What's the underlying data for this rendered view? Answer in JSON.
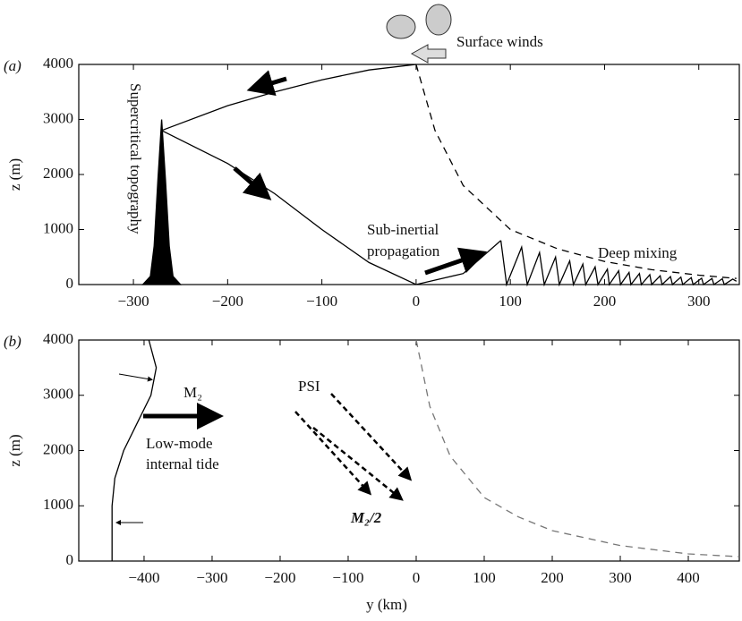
{
  "chart_data": [
    {
      "type": "line",
      "panel_label": "(a)",
      "ylabel": "z (m)",
      "xlim": [
        -358,
        343
      ],
      "ylim": [
        0,
        4000
      ],
      "xticks": [
        {
          "value": -300,
          "label": "−300"
        },
        {
          "value": -200,
          "label": "−200"
        },
        {
          "value": -100,
          "label": "−100"
        },
        0,
        100,
        200,
        300
      ],
      "yticks": [
        0,
        1000,
        2000,
        3000,
        4000
      ],
      "series": [
        {
          "color": "#000000",
          "fill": true,
          "x": [
            -290,
            -282,
            -278,
            -274,
            -270,
            -266,
            -262,
            -258,
            -250
          ],
          "y": [
            0,
            150,
            700,
            1900,
            3000,
            1900,
            700,
            150,
            0
          ]
        },
        {
          "color": "#000000",
          "x": [
            -270,
            -200,
            -150,
            -100,
            -50,
            0
          ],
          "y": [
            2800,
            3250,
            3500,
            3720,
            3900,
            4000
          ]
        },
        {
          "color": "#000000",
          "x": [
            -270,
            -200,
            -150,
            -100,
            -50,
            0,
            50,
            90
          ],
          "y": [
            2800,
            2200,
            1650,
            1000,
            400,
            0,
            200,
            800
          ]
        },
        {
          "color": "#000000",
          "x": [
            90,
            96,
            112,
            118,
            131,
            136,
            148,
            152,
            163,
            167,
            177,
            180,
            190,
            193,
            203,
            205,
            215,
            217,
            226,
            228,
            237,
            239,
            248,
            250,
            259,
            261,
            270,
            272,
            281,
            283,
            292,
            294,
            303,
            305,
            314,
            316,
            325,
            327,
            336,
            340
          ],
          "y": [
            800,
            0,
            680,
            0,
            580,
            0,
            500,
            0,
            430,
            0,
            370,
            0,
            320,
            0,
            280,
            0,
            250,
            0,
            220,
            0,
            200,
            0,
            180,
            0,
            160,
            0,
            145,
            0,
            135,
            0,
            125,
            0,
            115,
            0,
            110,
            0,
            105,
            0,
            100,
            60
          ]
        },
        {
          "color": "#000000",
          "dash": true,
          "x": [
            0,
            20,
            50,
            100,
            150,
            200,
            250,
            300,
            340
          ],
          "y": [
            4000,
            2800,
            1800,
            1000,
            650,
            420,
            270,
            170,
            110
          ]
        }
      ],
      "annotations": [
        "Surface winds",
        "Supercritical topography",
        "Sub-inertial",
        "propagation",
        "Deep mixing"
      ]
    },
    {
      "type": "line",
      "panel_label": "(b)",
      "ylabel": "z (m)",
      "xlabel": "y (km)",
      "xlim": [
        -496,
        475
      ],
      "ylim": [
        0,
        4000
      ],
      "xticks": [
        {
          "value": -400,
          "label": "−400"
        },
        {
          "value": -300,
          "label": "−300"
        },
        {
          "value": -200,
          "label": "−200"
        },
        {
          "value": -100,
          "label": "−100"
        },
        0,
        100,
        200,
        300,
        400
      ],
      "yticks": [
        0,
        1000,
        2000,
        3000,
        4000
      ],
      "series": [
        {
          "color": "#000000",
          "x": [
            -393,
            -382,
            -390,
            -410,
            -430,
            -443,
            -447,
            -447
          ],
          "y": [
            4000,
            3500,
            3000,
            2500,
            2000,
            1500,
            1000,
            0
          ]
        },
        {
          "color": "#777777",
          "dash": true,
          "x": [
            0,
            20,
            50,
            100,
            150,
            200,
            300,
            400,
            475
          ],
          "y": [
            4000,
            2800,
            1900,
            1150,
            800,
            550,
            280,
            130,
            80
          ]
        }
      ],
      "annotations": [
        "M₂",
        "Low-mode",
        "internal tide",
        "PSI",
        "M₂/2"
      ]
    }
  ]
}
